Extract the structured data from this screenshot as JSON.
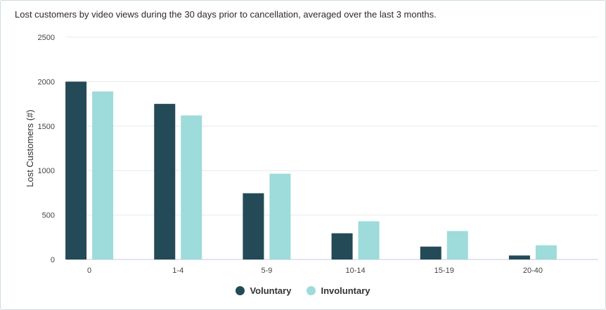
{
  "chart_data": {
    "type": "bar",
    "title": "Lost customers by video views during the 30 days prior to cancellation, averaged over the last 3 months.",
    "xlabel": "",
    "ylabel": "Lost Customers (#)",
    "ylim": [
      0,
      2500
    ],
    "yticks": [
      "0",
      "500",
      "1000",
      "1500",
      "2000",
      "2500"
    ],
    "categories": [
      "0",
      "1-4",
      "5-9",
      "10-14",
      "15-19",
      "20-40"
    ],
    "series": [
      {
        "name": "Voluntary",
        "color": "#234a56",
        "values": [
          2000,
          1750,
          745,
          295,
          145,
          45
        ]
      },
      {
        "name": "Involuntary",
        "color": "#9edbdb",
        "values": [
          1890,
          1620,
          965,
          430,
          320,
          160
        ]
      }
    ],
    "grid": true,
    "legend_position": "bottom-center"
  }
}
